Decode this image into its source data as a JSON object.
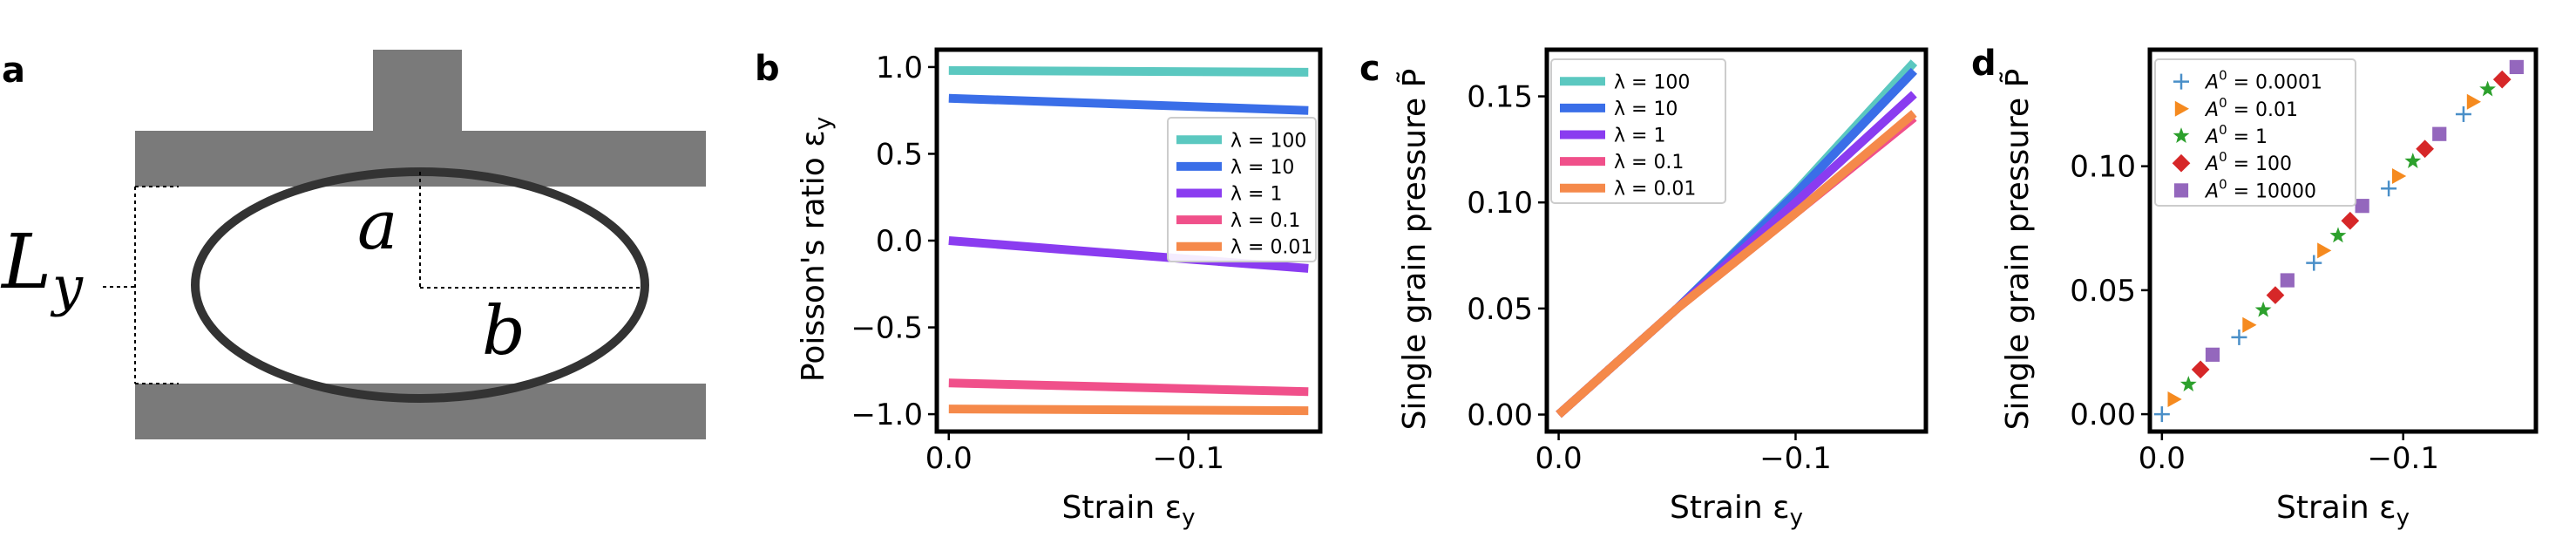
{
  "panels": {
    "a": "a",
    "b": "b",
    "c": "c",
    "d": "d"
  },
  "schematic": {
    "label_a": "a",
    "label_b": "b",
    "label_L": "L",
    "label_y": "y",
    "colors": {
      "plate": "#7a7a7a",
      "ellipse": "#333333"
    }
  },
  "chart_data": [
    {
      "type": "line",
      "panel": "b",
      "xlabel": "Strain ε",
      "xlabel_sub": "y",
      "ylabel": "Poisson's ratio ε",
      "ylabel_sub": "y",
      "xlim": [
        0.005,
        -0.155
      ],
      "ylim": [
        -1.1,
        1.1
      ],
      "xticks": [
        0.0,
        -0.1
      ],
      "xtick_labels": [
        "0.0",
        "−0.1"
      ],
      "yticks": [
        1.0,
        0.5,
        0.0,
        -0.5,
        -1.0
      ],
      "ytick_labels": [
        "1.0",
        "0.5",
        "0.0",
        "−0.5",
        "−1.0"
      ],
      "legend_position": "center-right",
      "series": [
        {
          "name": "λ = 100",
          "color": "#5bc8c0",
          "x": [
            0.0,
            -0.15
          ],
          "y": [
            0.98,
            0.97
          ]
        },
        {
          "name": "λ = 10",
          "color": "#3a6ee8",
          "x": [
            0.0,
            -0.15
          ],
          "y": [
            0.82,
            0.75
          ]
        },
        {
          "name": "λ = 1",
          "color": "#8a3cf0",
          "x": [
            0.0,
            -0.15
          ],
          "y": [
            0.0,
            -0.16
          ]
        },
        {
          "name": "λ = 0.1",
          "color": "#f0508a",
          "x": [
            0.0,
            -0.15
          ],
          "y": [
            -0.82,
            -0.87
          ]
        },
        {
          "name": "λ = 0.01",
          "color": "#f5894a",
          "x": [
            0.0,
            -0.15
          ],
          "y": [
            -0.97,
            -0.98
          ]
        }
      ]
    },
    {
      "type": "line",
      "panel": "c",
      "xlabel": "Strain ε",
      "xlabel_sub": "y",
      "ylabel": "Single grain pressure P̃",
      "xlim": [
        0.005,
        -0.155
      ],
      "ylim": [
        -0.008,
        0.172
      ],
      "xticks": [
        0.0,
        -0.1
      ],
      "xtick_labels": [
        "0.0",
        "−0.1"
      ],
      "yticks": [
        0.0,
        0.05,
        0.1,
        0.15
      ],
      "ytick_labels": [
        "0.00",
        "0.05",
        "0.10",
        "0.15"
      ],
      "legend_position": "top-left",
      "series": [
        {
          "name": "λ = 100",
          "color": "#5bc8c0",
          "x": [
            0.0,
            -0.05,
            -0.1,
            -0.15
          ],
          "y": [
            0.0,
            0.05,
            0.105,
            0.166
          ]
        },
        {
          "name": "λ = 10",
          "color": "#3a6ee8",
          "x": [
            0.0,
            -0.05,
            -0.1,
            -0.15
          ],
          "y": [
            0.0,
            0.05,
            0.104,
            0.162
          ]
        },
        {
          "name": "λ = 1",
          "color": "#8a3cf0",
          "x": [
            0.0,
            -0.05,
            -0.1,
            -0.15
          ],
          "y": [
            0.0,
            0.05,
            0.1,
            0.151
          ]
        },
        {
          "name": "λ = 0.1",
          "color": "#f0508a",
          "x": [
            0.0,
            -0.05,
            -0.1,
            -0.15
          ],
          "y": [
            0.0,
            0.05,
            0.095,
            0.14
          ]
        },
        {
          "name": "λ = 0.01",
          "color": "#f5894a",
          "x": [
            0.0,
            -0.05,
            -0.1,
            -0.15
          ],
          "y": [
            0.0,
            0.05,
            0.095,
            0.142
          ]
        }
      ]
    },
    {
      "type": "scatter",
      "panel": "d",
      "xlabel": "Strain ε",
      "xlabel_sub": "y",
      "ylabel": "Single grain pressure P̃",
      "xlim": [
        0.005,
        -0.155
      ],
      "ylim": [
        -0.007,
        0.147
      ],
      "xticks": [
        0.0,
        -0.1
      ],
      "xtick_labels": [
        "0.0",
        "−0.1"
      ],
      "yticks": [
        0.0,
        0.05,
        0.1
      ],
      "ytick_labels": [
        "0.00",
        "0.05",
        "0.10"
      ],
      "legend_position": "top-left",
      "series": [
        {
          "name": "A⁰ = 0.0001",
          "base": "A",
          "sup": "0",
          "value": " = 0.0001",
          "color": "#4a8fc8",
          "marker": "plus",
          "x": [
            0.0,
            -0.032,
            -0.063,
            -0.094,
            -0.125
          ],
          "y": [
            0.0,
            0.031,
            0.061,
            0.091,
            0.121
          ]
        },
        {
          "name": "A⁰ = 0.01",
          "base": "A",
          "sup": "0",
          "value": " = 0.01",
          "color": "#f58a1f",
          "marker": "triangle",
          "x": [
            -0.005,
            -0.036,
            -0.067,
            -0.098,
            -0.129
          ],
          "y": [
            0.006,
            0.036,
            0.066,
            0.096,
            0.126
          ]
        },
        {
          "name": "A⁰ = 1",
          "base": "A",
          "sup": "0",
          "value": " = 1",
          "color": "#2ca02c",
          "marker": "star",
          "x": [
            -0.011,
            -0.042,
            -0.073,
            -0.104,
            -0.135
          ],
          "y": [
            0.012,
            0.042,
            0.072,
            0.102,
            0.131
          ]
        },
        {
          "name": "A⁰ = 100",
          "base": "A",
          "sup": "0",
          "value": " = 100",
          "color": "#d62728",
          "marker": "diamond",
          "x": [
            -0.016,
            -0.047,
            -0.078,
            -0.109,
            -0.141
          ],
          "y": [
            0.018,
            0.048,
            0.078,
            0.107,
            0.135
          ]
        },
        {
          "name": "A⁰ = 10000",
          "base": "A",
          "sup": "0",
          "value": " = 10000",
          "color": "#9467bd",
          "marker": "square",
          "x": [
            -0.021,
            -0.052,
            -0.083,
            -0.115,
            -0.147
          ],
          "y": [
            0.024,
            0.054,
            0.084,
            0.113,
            0.14
          ]
        }
      ]
    }
  ]
}
